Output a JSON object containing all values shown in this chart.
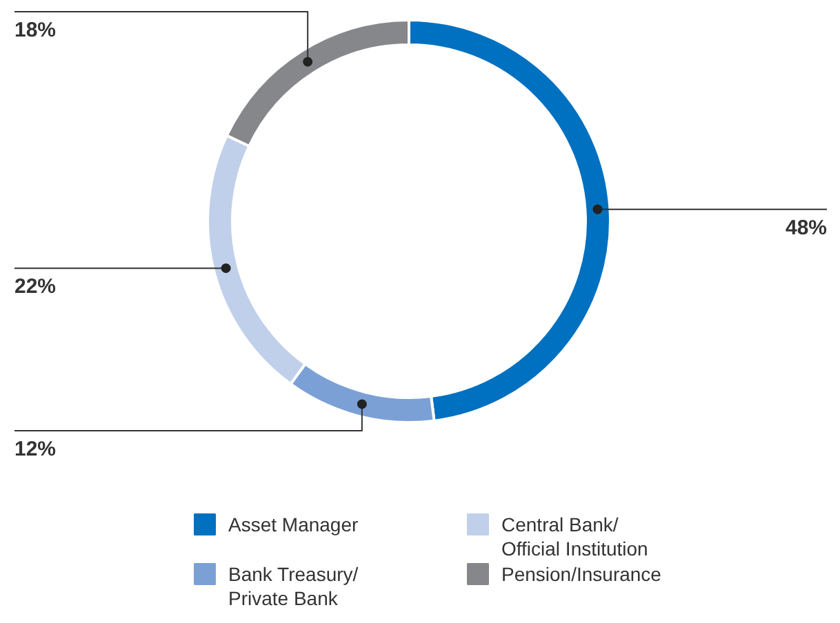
{
  "chart_data": {
    "type": "donut",
    "categories": [
      "Asset Manager",
      "Bank Treasury/\nPrivate Bank",
      "Central Bank/\nOfficial Institution",
      "Pension/Insurance"
    ],
    "values": [
      48,
      12,
      22,
      18
    ],
    "colors": [
      "#0070c0",
      "#7ba0d6",
      "#c0d0eb",
      "#86878b"
    ],
    "value_labels": [
      "48%",
      "12%",
      "22%",
      "18%"
    ],
    "legend": "bottom"
  }
}
